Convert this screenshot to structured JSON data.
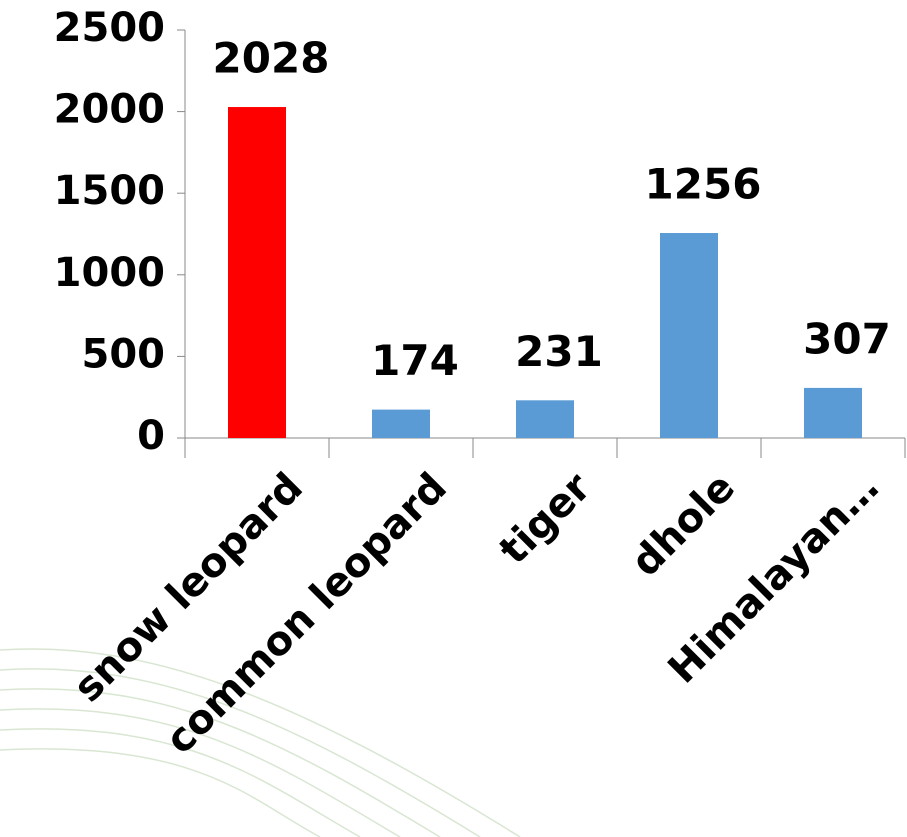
{
  "chart_data": {
    "type": "bar",
    "categories": [
      "snow leopard",
      "common leopard",
      "tiger",
      "dhole",
      "Himalayan…"
    ],
    "values": [
      2028,
      174,
      231,
      1256,
      307
    ],
    "colors": [
      "#ff0000",
      "#5b9bd5",
      "#5b9bd5",
      "#5b9bd5",
      "#5b9bd5"
    ],
    "ylim": [
      0,
      2500
    ],
    "yticks": [
      0,
      500,
      1000,
      1500,
      2000,
      2500
    ],
    "grid": false
  }
}
